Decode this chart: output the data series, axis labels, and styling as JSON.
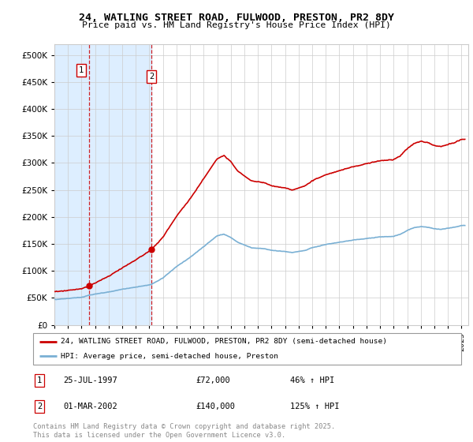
{
  "title": "24, WATLING STREET ROAD, FULWOOD, PRESTON, PR2 8DY",
  "subtitle": "Price paid vs. HM Land Registry's House Price Index (HPI)",
  "legend_line1": "24, WATLING STREET ROAD, FULWOOD, PRESTON, PR2 8DY (semi-detached house)",
  "legend_line2": "HPI: Average price, semi-detached house, Preston",
  "annotation1_date": "25-JUL-1997",
  "annotation1_price": "£72,000",
  "annotation1_hpi": "46% ↑ HPI",
  "annotation2_date": "01-MAR-2002",
  "annotation2_price": "£140,000",
  "annotation2_hpi": "125% ↑ HPI",
  "footer": "Contains HM Land Registry data © Crown copyright and database right 2025.\nThis data is licensed under the Open Government Licence v3.0.",
  "sale1_x": 1997.57,
  "sale1_y": 72000,
  "sale2_x": 2002.17,
  "sale2_y": 140000,
  "red_color": "#cc0000",
  "blue_color": "#7ab0d4",
  "shade_color": "#ddeeff",
  "ylim_min": 0,
  "ylim_max": 520000,
  "xlim_min": 1995.0,
  "xlim_max": 2025.5,
  "yticks": [
    0,
    50000,
    100000,
    150000,
    200000,
    250000,
    300000,
    350000,
    400000,
    450000,
    500000
  ],
  "ytick_labels": [
    "£0",
    "£50K",
    "£100K",
    "£150K",
    "£200K",
    "£250K",
    "£300K",
    "£350K",
    "£400K",
    "£450K",
    "£500K"
  ],
  "xticks": [
    1995,
    1996,
    1997,
    1998,
    1999,
    2000,
    2001,
    2002,
    2003,
    2004,
    2005,
    2006,
    2007,
    2008,
    2009,
    2010,
    2011,
    2012,
    2013,
    2014,
    2015,
    2016,
    2017,
    2018,
    2019,
    2020,
    2021,
    2022,
    2023,
    2024,
    2025
  ]
}
